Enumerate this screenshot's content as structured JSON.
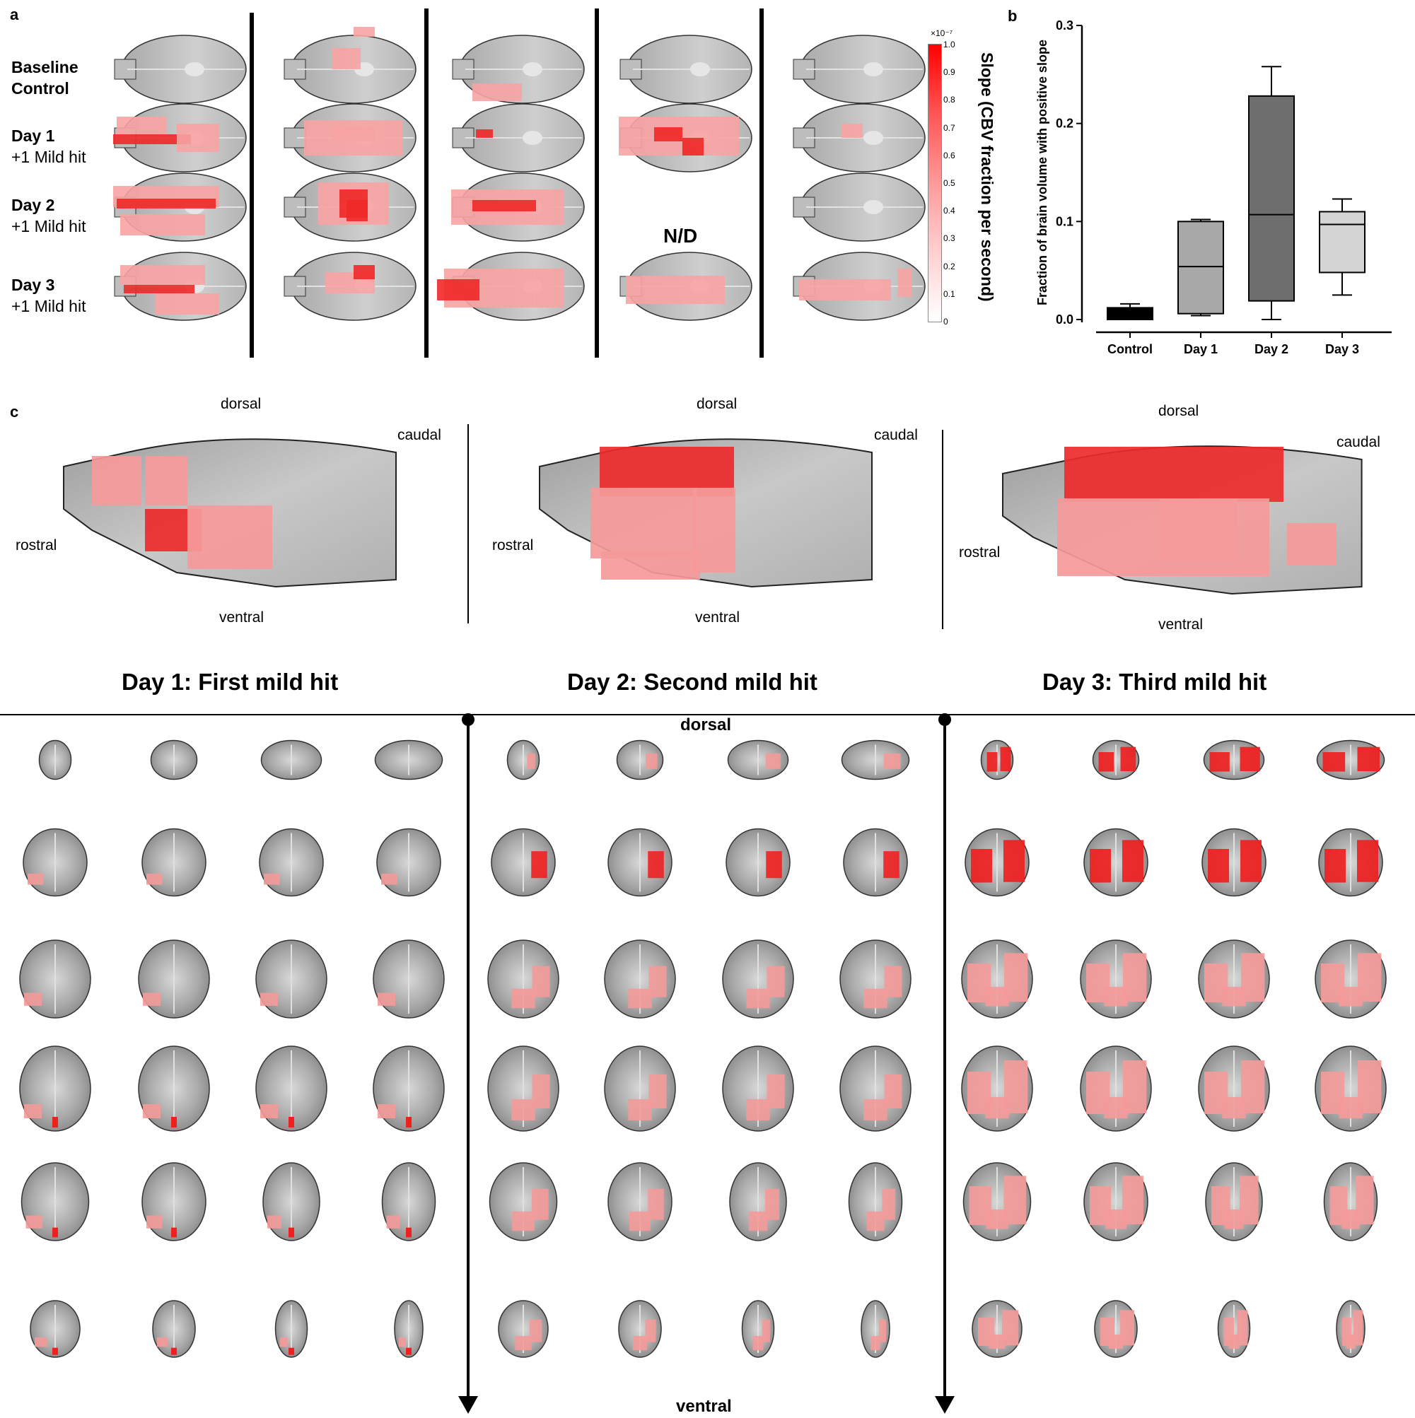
{
  "panel_a": {
    "letter": "a",
    "rows": [
      {
        "title": "Baseline",
        "subtitle": "Control"
      },
      {
        "title": "Day 1",
        "subtitle": "+1 Mild hit"
      },
      {
        "title": "Day 2",
        "subtitle": "+1 Mild hit"
      },
      {
        "title": "Day 3",
        "subtitle": "+1 Mild hit"
      }
    ],
    "not_determined": "N/D",
    "colorbar": {
      "label": "Slope (CBV fraction per second)",
      "exponent": "×10⁻⁷",
      "ticks": [
        "1.0",
        "0.9",
        "0.8",
        "0.7",
        "0.6",
        "0.5",
        "0.4",
        "0.3",
        "0.2",
        "0.1",
        "0"
      ],
      "color_low": "#ffffff",
      "color_high": "#ff0000"
    }
  },
  "panel_b": {
    "letter": "b",
    "chart_data": {
      "type": "box",
      "ylabel": "Fraction of brain volume with positive slope",
      "ylim": [
        0,
        0.3
      ],
      "yticks": [
        "0.0",
        "0.1",
        "0.2",
        "0.3"
      ],
      "categories": [
        "Control",
        "Day 1",
        "Day 2",
        "Day 3"
      ],
      "boxes": [
        {
          "name": "Control",
          "min": 0.0,
          "q1": 0.0,
          "median": 0.006,
          "q3": 0.012,
          "max": 0.016,
          "color": "#000000"
        },
        {
          "name": "Day 1",
          "min": 0.004,
          "q1": 0.006,
          "median": 0.054,
          "q3": 0.1,
          "max": 0.102,
          "color": "#a8a8a8"
        },
        {
          "name": "Day 2",
          "min": 0.0,
          "q1": 0.019,
          "median": 0.107,
          "q3": 0.228,
          "max": 0.258,
          "color": "#6e6e6e"
        },
        {
          "name": "Day 3",
          "min": 0.025,
          "q1": 0.048,
          "median": 0.097,
          "q3": 0.11,
          "max": 0.123,
          "color": "#d4d4d4"
        }
      ]
    }
  },
  "panel_c": {
    "letter": "c",
    "orientation": {
      "dorsal": "dorsal",
      "caudal": "caudal",
      "rostral": "rostral",
      "ventral": "ventral"
    }
  },
  "panel_d": {
    "titles": [
      "Day 1: First mild hit",
      "Day 2: Second mild hit",
      "Day 3: Third mild hit"
    ],
    "dorsal": "dorsal",
    "ventral": "ventral"
  }
}
